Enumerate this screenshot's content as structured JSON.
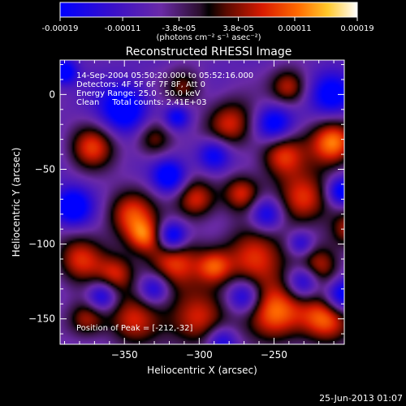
{
  "colorbar": {
    "tick_labels": [
      "-0.00019",
      "-0.00011",
      "-3.8e-05",
      "3.8e-05",
      "0.00011",
      "0.00019"
    ],
    "tick_values": [
      -0.00019,
      -0.00011,
      -3.8e-05,
      3.8e-05,
      0.00011,
      0.00019
    ],
    "range": [
      -0.00019,
      0.00019
    ],
    "unit_label": "(photons cm⁻² s⁻¹ asec⁻²)",
    "stops": [
      {
        "v": 0.0,
        "color": "#0000ff"
      },
      {
        "v": 0.18,
        "color": "#3a10c8"
      },
      {
        "v": 0.34,
        "color": "#6a2aa6"
      },
      {
        "v": 0.47,
        "color": "#2b0f2e"
      },
      {
        "v": 0.5,
        "color": "#000000"
      },
      {
        "v": 0.56,
        "color": "#5a0a00"
      },
      {
        "v": 0.68,
        "color": "#d81a00"
      },
      {
        "v": 0.8,
        "color": "#ff6a00"
      },
      {
        "v": 0.9,
        "color": "#ffc82a"
      },
      {
        "v": 1.0,
        "color": "#ffffff"
      }
    ]
  },
  "chart_data": {
    "type": "heatmap",
    "title": "Reconstructed RHESSI Image",
    "xlabel": "Heliocentric X (arcsec)",
    "ylabel": "Heliocentric Y (arcsec)",
    "xlim": [
      -393,
      -203
    ],
    "ylim": [
      -167,
      23
    ],
    "x_ticks": [
      -350,
      -300,
      -250
    ],
    "x_tick_labels": [
      "−350",
      "−300",
      "−250"
    ],
    "y_ticks": [
      0,
      -50,
      -100,
      -150
    ],
    "y_tick_labels": [
      "0",
      "−50",
      "−100",
      "−150"
    ],
    "annotations": [
      "14-Sep-2004 05:50:20.000 to 05:52:16.000",
      "Detectors: 4F 5F 6F 7F 8F, Att 0",
      "Energy Range: 25.0 - 50.0 keV",
      "Clean     Total counts: 2.41E+03"
    ],
    "peak_label": "Position of Peak = [-212,-32]",
    "peak_position": [
      -212,
      -32
    ],
    "blobs": [
      {
        "x": -210,
        "y": -32,
        "r": 11,
        "v": 1.0
      },
      {
        "x": -216,
        "y": -150,
        "r": 12,
        "v": 0.95
      },
      {
        "x": -248,
        "y": -145,
        "r": 14,
        "v": 0.9
      },
      {
        "x": -230,
        "y": -70,
        "r": 13,
        "v": 0.85
      },
      {
        "x": -318,
        "y": -112,
        "r": 13,
        "v": 0.85
      },
      {
        "x": -346,
        "y": -80,
        "r": 12,
        "v": 0.8
      },
      {
        "x": -263,
        "y": -110,
        "r": 15,
        "v": 0.85
      },
      {
        "x": -245,
        "y": -40,
        "r": 11,
        "v": 0.8
      },
      {
        "x": -302,
        "y": -70,
        "r": 10,
        "v": 0.8
      },
      {
        "x": -372,
        "y": -35,
        "r": 11,
        "v": 0.75
      },
      {
        "x": -300,
        "y": -150,
        "r": 14,
        "v": 0.8
      },
      {
        "x": -345,
        "y": -150,
        "r": 13,
        "v": 0.7
      },
      {
        "x": -380,
        "y": -110,
        "r": 12,
        "v": 0.75
      },
      {
        "x": -280,
        "y": -20,
        "r": 12,
        "v": 0.75
      },
      {
        "x": -240,
        "y": 5,
        "r": 9,
        "v": 0.7
      },
      {
        "x": -272,
        "y": -66,
        "r": 9,
        "v": 0.7
      },
      {
        "x": -330,
        "y": -30,
        "r": 9,
        "v": 0.6
      },
      {
        "x": -355,
        "y": -120,
        "r": 9,
        "v": 0.6
      },
      {
        "x": -375,
        "y": -150,
        "r": 9,
        "v": 0.65
      },
      {
        "x": -220,
        "y": -115,
        "r": 10,
        "v": 0.65
      },
      {
        "x": -290,
        "y": -115,
        "r": 8,
        "v": 0.6
      },
      {
        "x": -310,
        "y": 5,
        "r": 9,
        "v": 0.55
      },
      {
        "x": -337,
        "y": -95,
        "r": 8,
        "v": 0.6
      },
      {
        "x": -200,
        "y": -90,
        "r": 9,
        "v": 0.6
      },
      {
        "x": -318,
        "y": -95,
        "r": 7,
        "v": -0.9
      },
      {
        "x": -350,
        "y": -10,
        "r": 11,
        "v": -0.8
      },
      {
        "x": -250,
        "y": -20,
        "r": 9,
        "v": -0.75
      },
      {
        "x": -205,
        "y": -135,
        "r": 8,
        "v": -0.8
      },
      {
        "x": -270,
        "y": -135,
        "r": 8,
        "v": -0.7
      },
      {
        "x": -230,
        "y": -125,
        "r": 8,
        "v": -0.8
      },
      {
        "x": -385,
        "y": -75,
        "r": 9,
        "v": -0.8
      },
      {
        "x": -290,
        "y": -40,
        "r": 8,
        "v": -0.7
      },
      {
        "x": -320,
        "y": -55,
        "r": 8,
        "v": -0.75
      },
      {
        "x": -255,
        "y": -80,
        "r": 8,
        "v": -0.7
      },
      {
        "x": -205,
        "y": -65,
        "r": 7,
        "v": -0.75
      },
      {
        "x": -210,
        "y": 0,
        "r": 10,
        "v": -0.7
      },
      {
        "x": -365,
        "y": -135,
        "r": 7,
        "v": -0.65
      },
      {
        "x": -330,
        "y": -130,
        "r": 7,
        "v": -0.6
      },
      {
        "x": -285,
        "y": -165,
        "r": 7,
        "v": -0.55
      },
      {
        "x": -390,
        "y": 15,
        "r": 6,
        "v": -0.7
      },
      {
        "x": -315,
        "y": -15,
        "r": 6,
        "v": -0.6
      },
      {
        "x": -232,
        "y": -100,
        "r": 6,
        "v": -0.5
      }
    ]
  },
  "footer": {
    "timestamp": "25-Jun-2013 01:07"
  }
}
